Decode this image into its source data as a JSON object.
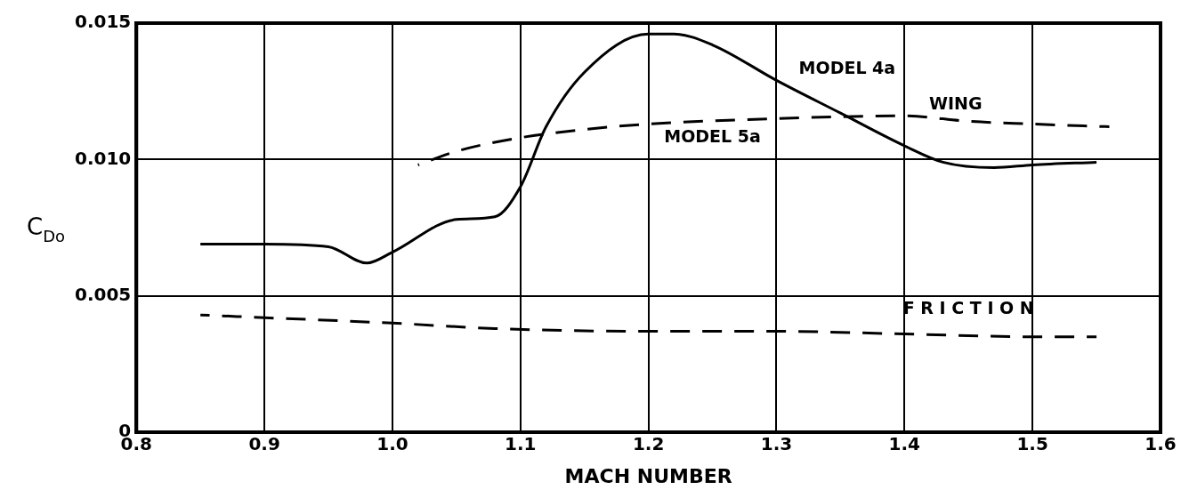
{
  "chart_data": {
    "type": "line",
    "xlabel": "MACH NUMBER",
    "ylabel": "C$_{Do}$",
    "xlim": [
      0.8,
      1.6
    ],
    "ylim": [
      0,
      0.015
    ],
    "xticks": [
      0.8,
      0.9,
      {
        "value": 1.0,
        "label": "1.0"
      },
      1.1,
      1.2,
      1.3,
      1.4,
      1.5,
      1.6
    ],
    "yticks": [
      0,
      0.005,
      {
        "value": 0.01,
        "label": "0.010"
      },
      0.015
    ],
    "grid": true,
    "legend": false,
    "marker": "none",
    "series": [
      {
        "name": "MODEL 4a",
        "color": "#000000",
        "line_style": "solid",
        "x": [
          0.85,
          0.9,
          0.95,
          0.98,
          1.0,
          1.05,
          1.08,
          1.1,
          1.12,
          1.15,
          1.2,
          1.22,
          1.25,
          1.3,
          1.35,
          1.4,
          1.43,
          1.47,
          1.5,
          1.55
        ],
        "values": [
          0.0069,
          0.0069,
          0.0068,
          0.0062,
          0.0066,
          0.0078,
          0.0079,
          0.009,
          0.0112,
          0.0132,
          0.0146,
          0.0146,
          0.0142,
          0.0129,
          0.0117,
          0.0105,
          0.0099,
          0.0097,
          0.0098,
          0.0099
        ]
      },
      {
        "name": "WING",
        "color": "#000000",
        "line_style": "dashed",
        "x": [
          1.02,
          1.05,
          1.1,
          1.15,
          1.2,
          1.3,
          1.4,
          1.45,
          1.5,
          1.56
        ],
        "values": [
          0.0098,
          0.0103,
          0.0108,
          0.0111,
          0.0113,
          0.0115,
          0.0116,
          0.0114,
          0.0113,
          0.0112
        ]
      },
      {
        "name": "F R I C T I O N",
        "color": "#000000",
        "line_style": "dashed",
        "x": [
          0.85,
          0.9,
          1.0,
          1.08,
          1.2,
          1.3,
          1.4,
          1.5,
          1.55
        ],
        "values": [
          0.0043,
          0.0042,
          0.004,
          0.0038,
          0.0037,
          0.0037,
          0.0036,
          0.0035,
          0.0035
        ]
      }
    ],
    "annotations": [
      "MODEL 5a"
    ]
  }
}
